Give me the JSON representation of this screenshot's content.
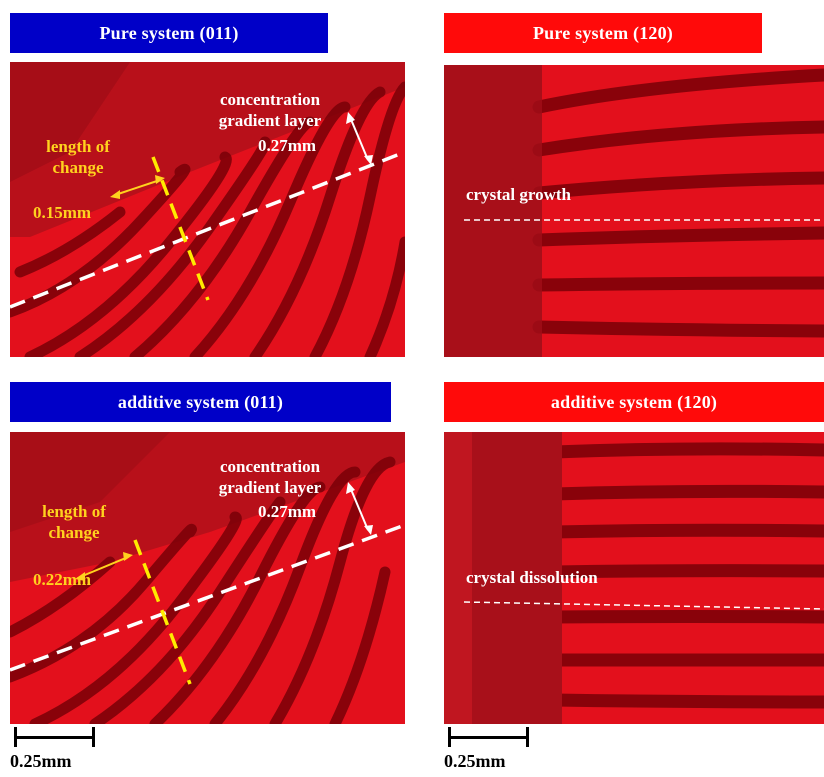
{
  "banners": {
    "pure_011": "Pure system (011)",
    "pure_120": "Pure system (120)",
    "additive_011": "additive system (011)",
    "additive_120": "additive system (120)"
  },
  "colors": {
    "blue_banner": "#0000c8",
    "red_banner": "#ff0a0a",
    "crystal_red": "#e3101c",
    "fringe_dark": "#7a0008",
    "label_yellow": "#ffd21e",
    "label_white": "#ffffff"
  },
  "panels": {
    "pure_011": {
      "gradient_label_line1": "concentration",
      "gradient_label_line2": "gradient layer",
      "gradient_value": "0.27mm",
      "change_label_line1": "length of",
      "change_label_line2": "change",
      "change_value": "0.15mm"
    },
    "pure_120": {
      "process_label": "crystal growth"
    },
    "additive_011": {
      "gradient_label_line1": "concentration",
      "gradient_label_line2": "gradient layer",
      "gradient_value": "0.27mm",
      "change_label_line1": "length of",
      "change_label_line2": "change",
      "change_value": "0.22mm"
    },
    "additive_120": {
      "process_label": "crystal dissolution"
    }
  },
  "scale_bars": {
    "left": "0.25mm",
    "right": "0.25mm"
  }
}
